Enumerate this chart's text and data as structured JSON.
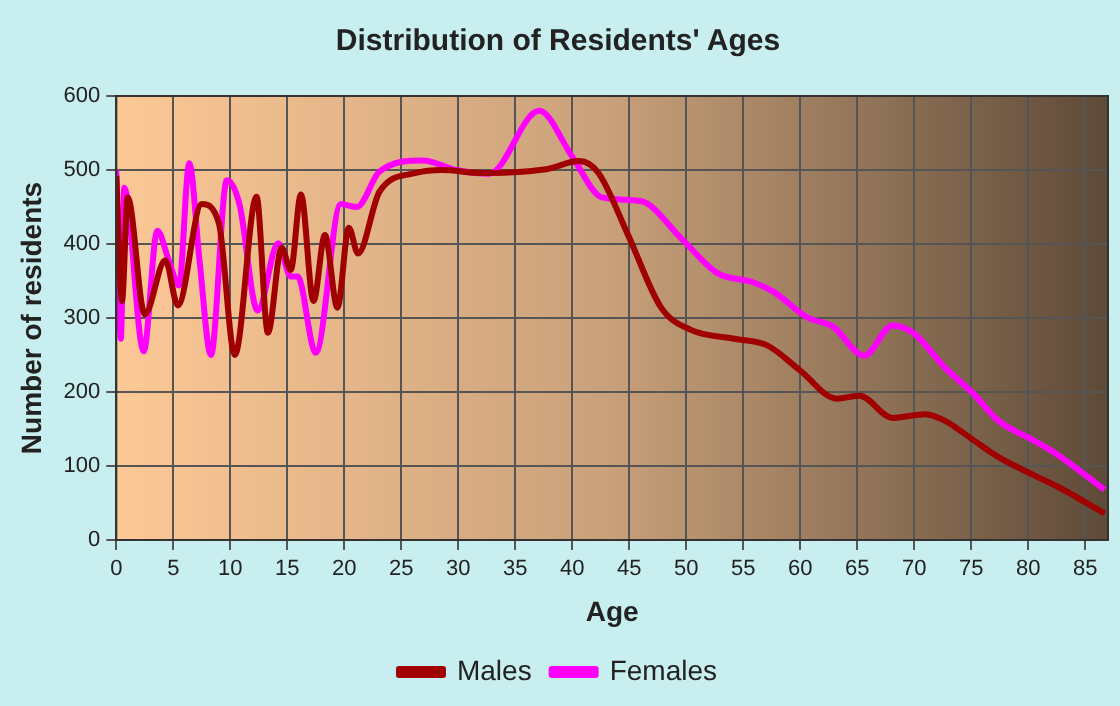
{
  "chart_data": {
    "type": "line",
    "title": "Distribution of Residents' Ages",
    "xlabel": "Age",
    "ylabel": "Number of residents",
    "xlim": [
      0,
      87
    ],
    "xticks": [
      0,
      5,
      10,
      15,
      20,
      25,
      30,
      35,
      40,
      45,
      50,
      55,
      60,
      65,
      70,
      75,
      80,
      85
    ],
    "ylim": [
      0,
      600
    ],
    "yticks": [
      0,
      100,
      200,
      300,
      400,
      500,
      600
    ],
    "grid": true,
    "legend": "bottom",
    "marker": "none",
    "line_style": "solid",
    "series": [
      {
        "name": "Males",
        "color": "#a00000",
        "x": [
          0,
          0.5,
          1,
          2.5,
          4.3,
          5.4,
          7.5,
          9,
          10.4,
          12.3,
          13.3,
          14.5,
          15.3,
          16.2,
          17.3,
          18.3,
          19.4,
          20.4,
          21.2,
          23.1,
          26.3,
          28.6,
          32,
          37.7,
          40.6,
          42.3,
          44.9,
          47.8,
          50.4,
          54.2,
          57.1,
          60,
          63.2,
          65.2,
          68.1,
          71,
          72.7,
          75.1,
          77.4,
          80.3,
          82.6,
          86.7
        ],
        "values": [
          492,
          323,
          463,
          305,
          378,
          317,
          454,
          428,
          250,
          464,
          280,
          395,
          365,
          467,
          323,
          412,
          314,
          422,
          387,
          471,
          496,
          500,
          496,
          501,
          512,
          496,
          412,
          314,
          284,
          272,
          263,
          229,
          191,
          195,
          165,
          170,
          161,
          136,
          112,
          89,
          72,
          36
        ]
      },
      {
        "name": "Females",
        "color": "#ff00ff",
        "x": [
          0,
          0.4,
          0.7,
          2.4,
          3.6,
          4.6,
          5.5,
          6.4,
          7.3,
          8.3,
          9.7,
          10.8,
          12.4,
          14.2,
          15.3,
          15.9,
          17.5,
          19.7,
          21.1,
          23.1,
          26.9,
          29.8,
          32.7,
          37.1,
          40,
          42.6,
          46,
          49.6,
          52.7,
          55.9,
          57.7,
          60.6,
          62.9,
          65.6,
          68.1,
          69.9,
          72.7,
          75.1,
          77.4,
          80.3,
          82.6,
          86.7
        ],
        "values": [
          500,
          272,
          476,
          255,
          418,
          378,
          344,
          509,
          378,
          250,
          486,
          454,
          310,
          401,
          356,
          356,
          253,
          454,
          450,
          498,
          513,
          500,
          495,
          580,
          518,
          463,
          458,
          407,
          361,
          348,
          335,
          301,
          288,
          249,
          290,
          280,
          233,
          199,
          161,
          136,
          115,
          68
        ]
      }
    ]
  }
}
